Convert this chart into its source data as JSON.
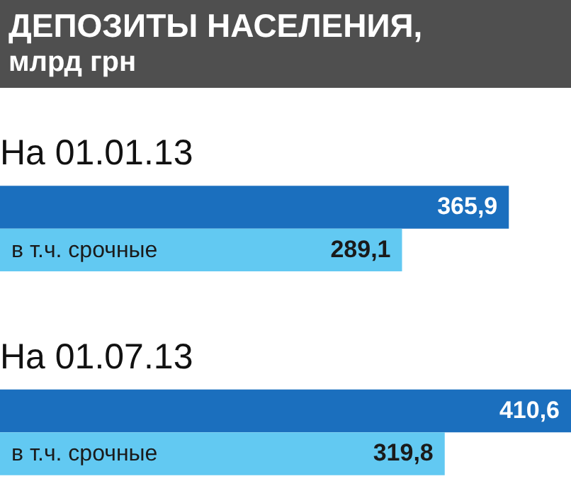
{
  "chart_data": {
    "type": "bar",
    "orientation": "horizontal",
    "title": "ДЕПОЗИТЫ НАСЕЛЕНИЯ,",
    "subtitle": "млрд грн",
    "categories": [
      "На 01.01.13",
      "На 01.07.13"
    ],
    "series": [
      {
        "color": "#1b6fbe",
        "values": [
          365.9,
          410.6
        ],
        "value_labels": [
          "365,9",
          "410,6"
        ]
      },
      {
        "name": "в т.ч. срочные",
        "color": "#62c9f2",
        "values": [
          289.1,
          319.8
        ],
        "value_labels": [
          "289,1",
          "319,8"
        ]
      }
    ]
  }
}
